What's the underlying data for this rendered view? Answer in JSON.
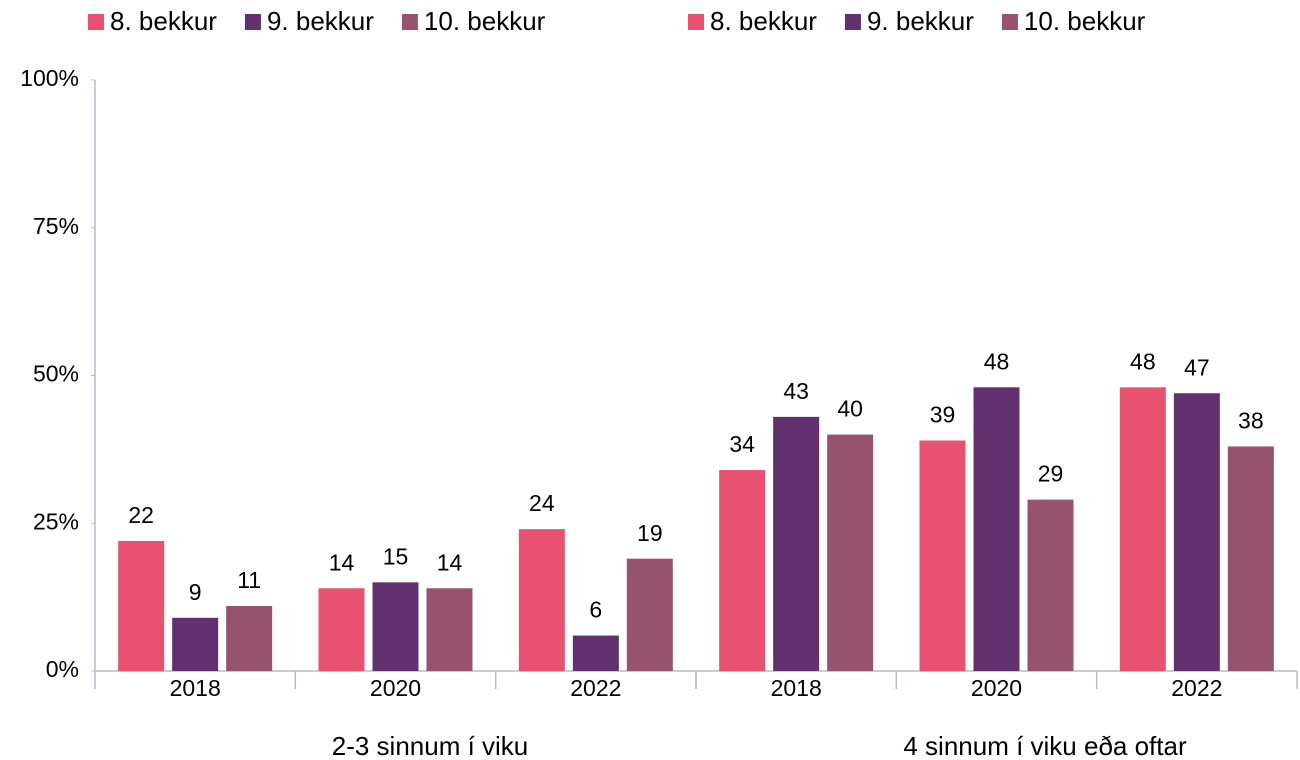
{
  "chart_data": [
    {
      "type": "bar",
      "xlabel": "2-3 sinnum í viku",
      "categories": [
        "2018",
        "2020",
        "2022"
      ],
      "series": [
        {
          "name": "8. bekkur",
          "color": "#e8516f",
          "values": [
            22,
            14,
            24
          ]
        },
        {
          "name": "9. bekkur",
          "color": "#62306e",
          "values": [
            9,
            15,
            6
          ]
        },
        {
          "name": "10. bekkur",
          "color": "#97536d",
          "values": [
            11,
            14,
            19
          ]
        }
      ],
      "ylim": [
        0,
        100
      ],
      "yticks": [
        {
          "value": 0,
          "label": "0%"
        },
        {
          "value": 25,
          "label": "25%"
        },
        {
          "value": 50,
          "label": "50%"
        },
        {
          "value": 75,
          "label": "75%"
        },
        {
          "value": 100,
          "label": "100%"
        }
      ]
    },
    {
      "type": "bar",
      "xlabel": "4 sinnum í viku eða oftar",
      "categories": [
        "2018",
        "2020",
        "2022"
      ],
      "series": [
        {
          "name": "8. bekkur",
          "color": "#e8516f",
          "values": [
            34,
            39,
            48
          ]
        },
        {
          "name": "9. bekkur",
          "color": "#62306e",
          "values": [
            43,
            48,
            47
          ]
        },
        {
          "name": "10. bekkur",
          "color": "#97536d",
          "values": [
            40,
            29,
            38
          ]
        }
      ],
      "ylim": [
        0,
        100
      ]
    }
  ]
}
